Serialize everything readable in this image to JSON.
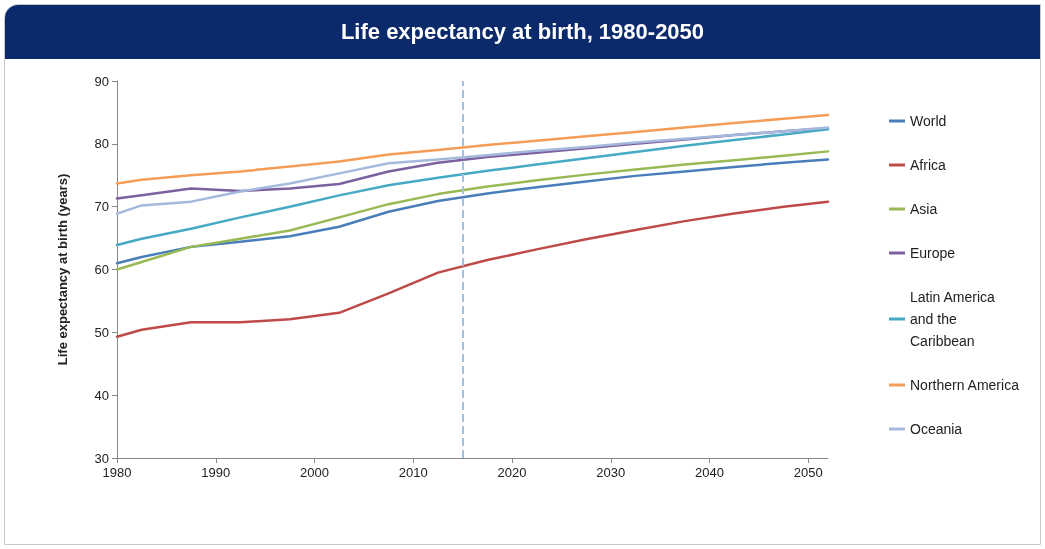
{
  "chart_data": {
    "type": "line",
    "title": "Life expectancy at birth, 1980-2050",
    "ylabel": "Life expectancy at birth (years)",
    "x": [
      1980,
      1982.5,
      1987.5,
      1992.5,
      1997.5,
      2002.5,
      2007.5,
      2012.5,
      2017.5,
      2022.5,
      2027.5,
      2032.5,
      2037.5,
      2042.5,
      2047.5,
      2052
    ],
    "series": [
      {
        "name": "World",
        "color": "#4a7ebb",
        "values": [
          61.0,
          62.0,
          63.6,
          64.4,
          65.3,
          66.8,
          69.2,
          70.9,
          72.1,
          73.1,
          74.0,
          74.9,
          75.6,
          76.3,
          77.0,
          77.5
        ]
      },
      {
        "name": "Africa",
        "color": "#be4b48",
        "values": [
          49.3,
          50.4,
          51.6,
          51.6,
          52.1,
          53.1,
          56.2,
          59.5,
          61.5,
          63.2,
          64.8,
          66.3,
          67.7,
          68.9,
          70.0,
          70.8
        ]
      },
      {
        "name": "Asia",
        "color": "#98b954",
        "values": [
          60.0,
          61.2,
          63.6,
          64.9,
          66.2,
          68.3,
          70.4,
          72.0,
          73.2,
          74.2,
          75.1,
          75.9,
          76.7,
          77.4,
          78.1,
          78.8
        ]
      },
      {
        "name": "Europe",
        "color": "#7d60a0",
        "values": [
          71.3,
          71.8,
          72.9,
          72.5,
          72.9,
          73.6,
          75.6,
          77.0,
          77.9,
          78.6,
          79.3,
          80.0,
          80.7,
          81.4,
          82.0,
          82.5
        ]
      },
      {
        "name": "Latin America and the Caribbean",
        "color": "#46aac5",
        "values": [
          63.9,
          64.9,
          66.5,
          68.3,
          70.0,
          71.8,
          73.4,
          74.6,
          75.7,
          76.7,
          77.7,
          78.7,
          79.7,
          80.6,
          81.5,
          82.3
        ]
      },
      {
        "name": "Northern America",
        "color": "#f59d56",
        "values": [
          73.7,
          74.3,
          75.0,
          75.6,
          76.4,
          77.2,
          78.3,
          79.0,
          79.8,
          80.5,
          81.2,
          81.9,
          82.6,
          83.3,
          84.0,
          84.6
        ]
      },
      {
        "name": "Oceania",
        "color": "#a5b9dd",
        "values": [
          68.9,
          70.2,
          70.8,
          72.4,
          73.7,
          75.3,
          76.9,
          77.5,
          78.2,
          78.9,
          79.5,
          80.2,
          80.8,
          81.4,
          82.0,
          82.6
        ]
      }
    ],
    "xlim": [
      1980,
      2052
    ],
    "xticks": [
      1980,
      1990,
      2000,
      2010,
      2020,
      2030,
      2040,
      2050
    ],
    "ylim": [
      30,
      90
    ],
    "yticks": [
      30,
      40,
      50,
      60,
      70,
      80,
      90
    ],
    "ref_lines": [
      {
        "axis": "x",
        "value": 2015,
        "color": "#a5c0e0",
        "line_style": "dashed"
      }
    ],
    "grid": false,
    "legend": "right",
    "marker": "none",
    "line_style": "solid"
  }
}
